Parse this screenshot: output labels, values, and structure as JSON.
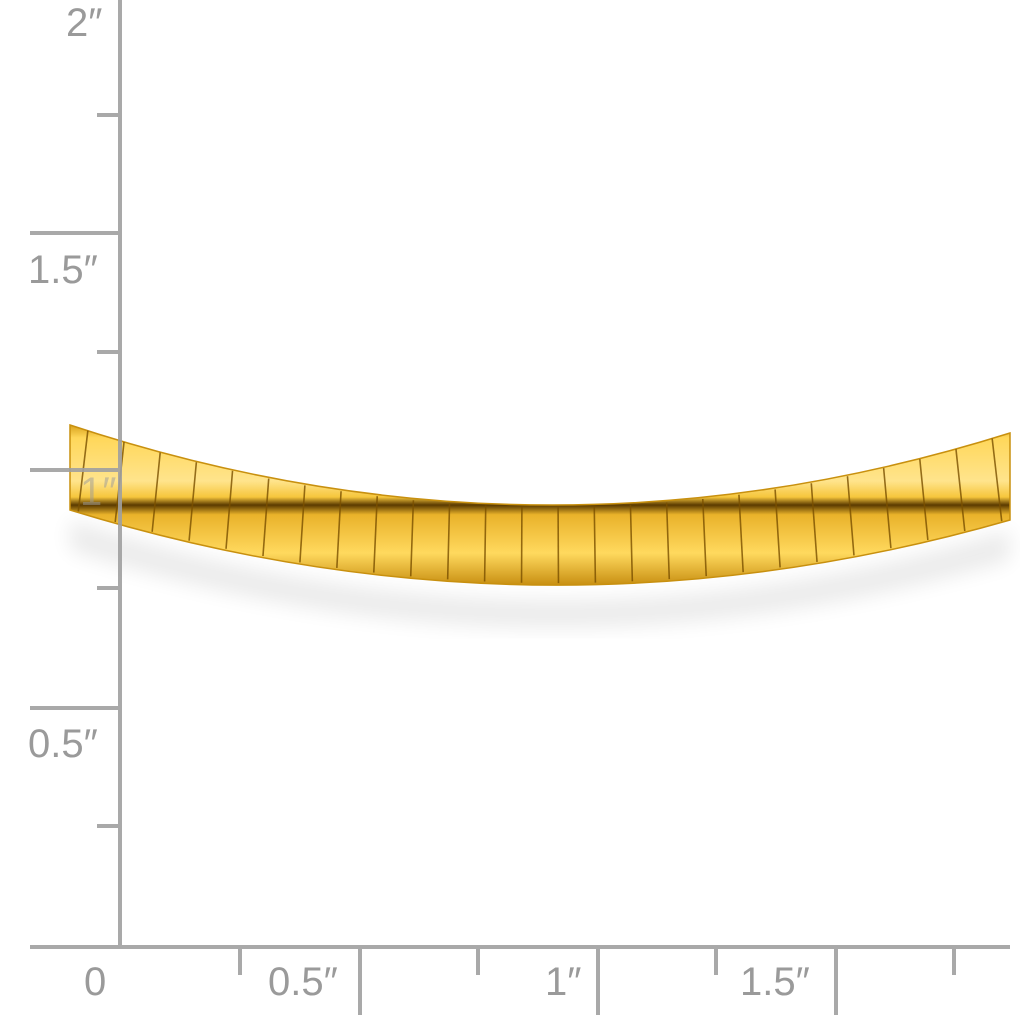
{
  "ruler": {
    "unit": "inch",
    "vertical_labels": [
      "2″",
      "1.5″",
      "1″",
      "0.5″"
    ],
    "horizontal_labels": [
      "0",
      "0.5″",
      "1″",
      "1.5″"
    ],
    "color": "#a0a0a0"
  },
  "product": {
    "item": "gold omega necklace",
    "colors": {
      "gold": "#f2c43a",
      "highlight": "#ffe38a",
      "shadow": "#8a5a00"
    }
  }
}
